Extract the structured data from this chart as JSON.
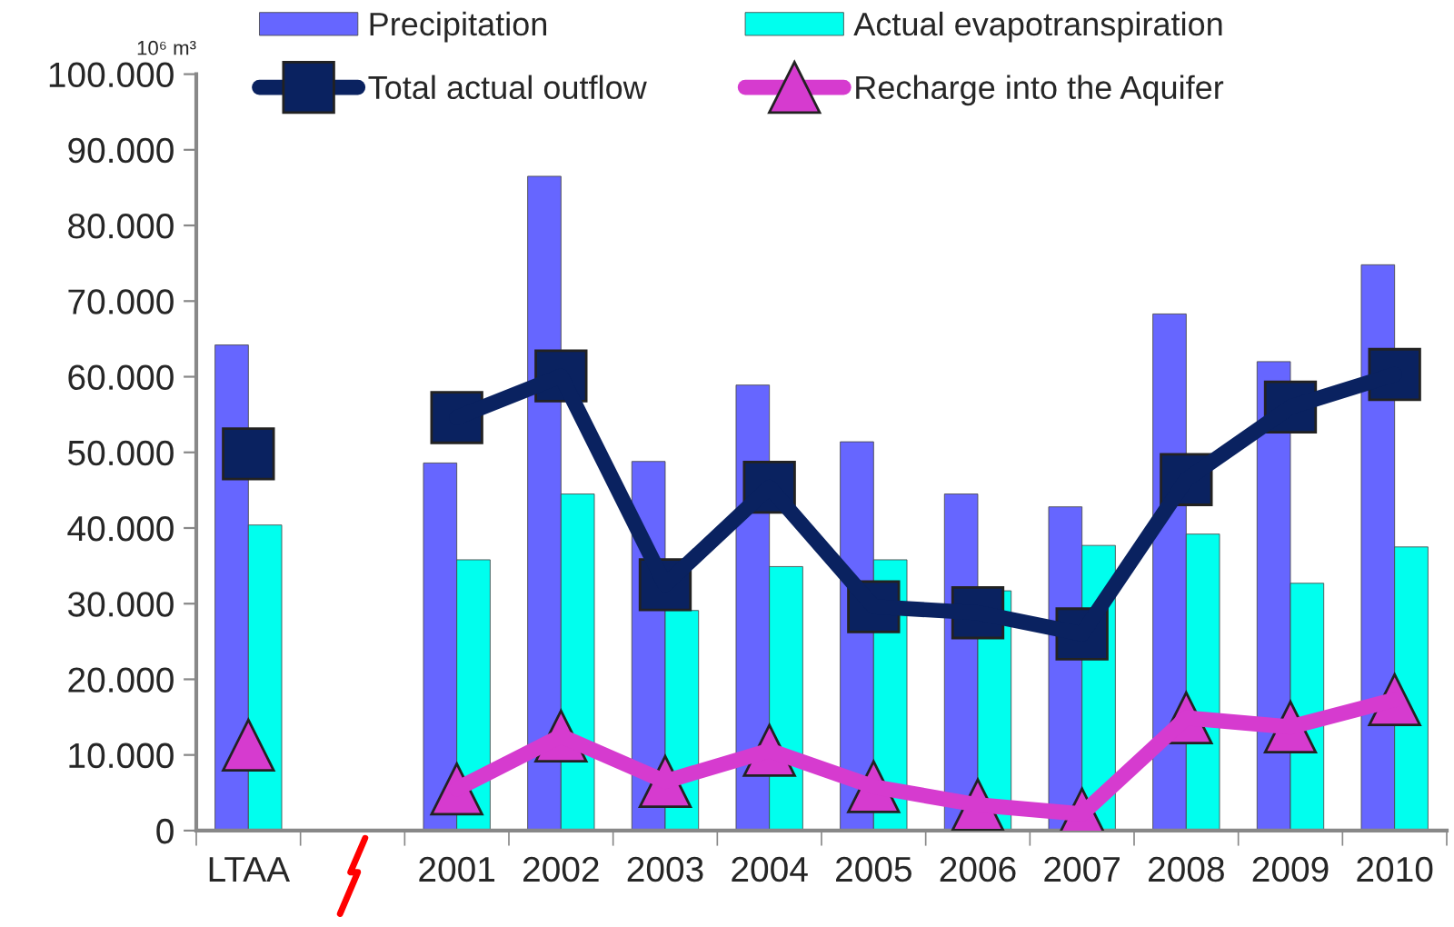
{
  "chart_data": {
    "type": "bar",
    "ylabel": "10⁶ m³",
    "categories": [
      "LTAA",
      null,
      "2001",
      "2002",
      "2003",
      "2004",
      "2005",
      "2006",
      "2007",
      "2008",
      "2009",
      "2010"
    ],
    "series": [
      {
        "name": "Precipitation",
        "color": "#6666ff",
        "values": [
          64200,
          null,
          48600,
          86500,
          48800,
          58900,
          51400,
          44500,
          42800,
          68300,
          62000,
          74800
        ]
      },
      {
        "name": "Actual evapotranspiration",
        "color": "#00ffee",
        "values": [
          40400,
          null,
          35800,
          44500,
          29100,
          34900,
          35800,
          31700,
          37700,
          39200,
          32700,
          37500
        ]
      },
      {
        "name": "Total actual outflow",
        "type": "line",
        "marker": "square",
        "color": "#0a2260",
        "values": [
          49800,
          null,
          54600,
          60100,
          32500,
          45400,
          29600,
          28800,
          26000,
          46400,
          56000,
          60300
        ]
      },
      {
        "name": "Recharge into the Aquifer",
        "type": "line",
        "marker": "triangle",
        "color": "#d63bcf",
        "values": [
          11300,
          null,
          5500,
          12500,
          6500,
          10600,
          5800,
          3400,
          2200,
          14900,
          13700,
          17300
        ]
      }
    ],
    "ylim": [
      0,
      100000
    ],
    "yticks": [
      0,
      {
        "value": 10000,
        "label": "10.000"
      },
      {
        "value": 20000,
        "label": "20.000"
      },
      {
        "value": 30000,
        "label": "30.000"
      },
      {
        "value": 40000,
        "label": "40.000"
      },
      {
        "value": 50000,
        "label": "50.000"
      },
      {
        "value": 60000,
        "label": "60.000"
      },
      {
        "value": 70000,
        "label": "70.000"
      },
      {
        "value": 80000,
        "label": "80.000"
      },
      {
        "value": 90000,
        "label": "90.000"
      },
      {
        "value": 100000,
        "label": "100.000"
      }
    ],
    "grid": false,
    "legend": "top"
  }
}
